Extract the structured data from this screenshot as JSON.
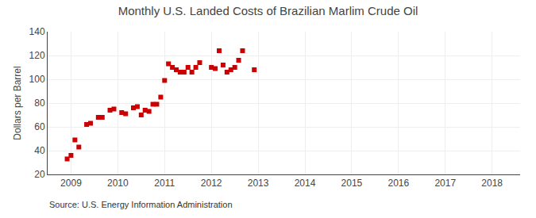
{
  "chart_data": {
    "type": "scatter",
    "title": "Monthly U.S. Landed Costs of Brazilian Marlim Crude Oil",
    "y_label": "Dollars per Barrel",
    "annotations": [
      "Source: U.S. Energy Information Administration"
    ],
    "x": [
      2008.917,
      2008.999,
      2009.083,
      2009.167,
      2009.333,
      2009.417,
      2009.583,
      2009.667,
      2009.833,
      2009.917,
      2010.083,
      2010.167,
      2010.333,
      2010.417,
      2010.5,
      2010.583,
      2010.667,
      2010.75,
      2010.833,
      2010.917,
      2011.0,
      2011.083,
      2011.167,
      2011.25,
      2011.333,
      2011.417,
      2011.5,
      2011.583,
      2011.667,
      2011.75,
      2012.0,
      2012.083,
      2012.167,
      2012.25,
      2012.333,
      2012.417,
      2012.5,
      2012.583,
      2012.667,
      2012.917
    ],
    "values": [
      33,
      36,
      49,
      43,
      62,
      63,
      68,
      68,
      74,
      75,
      72,
      71,
      76,
      77,
      70,
      74,
      73,
      79,
      79,
      85,
      99,
      113,
      110,
      108,
      106,
      106,
      110,
      106,
      110,
      114,
      110,
      109,
      124,
      112,
      106,
      108,
      110,
      116,
      124,
      108
    ],
    "color": "#cc0000",
    "marker": "square",
    "xlim": [
      2008.5,
      2018.6
    ],
    "xticks": [
      2009,
      2010,
      2011,
      2012,
      2013,
      2014,
      2015,
      2016,
      2017,
      2018
    ],
    "ylim": [
      20,
      140
    ],
    "yticks": [
      20,
      40,
      60,
      80,
      100,
      120,
      140
    ],
    "grid": true
  }
}
